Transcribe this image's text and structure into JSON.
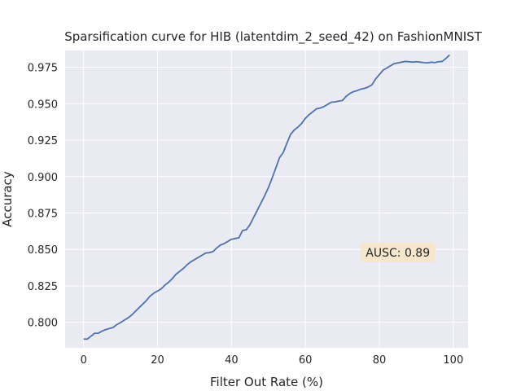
{
  "chart_data": {
    "type": "line",
    "title": "Sparsification curve for HIB (latentdim_2_seed_42) on FashionMNIST",
    "xlabel": "Filter Out Rate (%)",
    "ylabel": "Accuracy",
    "xlim": [
      -5,
      104
    ],
    "ylim": [
      0.7825,
      0.9865
    ],
    "xticks": [
      0,
      20,
      40,
      60,
      80,
      100
    ],
    "xtick_labels": [
      "0",
      "20",
      "40",
      "60",
      "80",
      "100"
    ],
    "yticks": [
      0.8,
      0.825,
      0.85,
      0.875,
      0.9,
      0.925,
      0.95,
      0.975
    ],
    "ytick_labels": [
      "0.800",
      "0.825",
      "0.850",
      "0.875",
      "0.900",
      "0.925",
      "0.950",
      "0.975"
    ],
    "grid": true,
    "colors": {
      "background": "#eaeaf2",
      "grid": "#ffffff",
      "line": "#4c72b0",
      "annotation_bg": "#f5e6cc"
    },
    "annotation": {
      "text": "AUSC: 0.89",
      "x": 85,
      "y": 0.848
    },
    "series": [
      {
        "x": [
          0,
          1,
          2,
          3,
          4,
          5,
          6,
          7,
          8,
          9,
          10,
          11,
          12,
          13,
          14,
          15,
          16,
          17,
          18,
          19,
          20,
          21,
          22,
          23,
          24,
          25,
          26,
          27,
          28,
          29,
          30,
          31,
          32,
          33,
          34,
          35,
          36,
          37,
          38,
          39,
          40,
          41,
          42,
          43,
          44,
          45,
          46,
          47,
          48,
          49,
          50,
          51,
          52,
          53,
          54,
          55,
          56,
          57,
          58,
          59,
          60,
          61,
          62,
          63,
          64,
          65,
          66,
          67,
          68,
          69,
          70,
          71,
          72,
          73,
          74,
          75,
          76,
          77,
          78,
          79,
          80,
          81,
          82,
          83,
          84,
          85,
          86,
          87,
          88,
          89,
          90,
          91,
          92,
          93,
          94,
          95,
          96,
          97,
          98,
          99
        ],
        "y": [
          0.7885,
          0.7885,
          0.7905,
          0.7925,
          0.7925,
          0.794,
          0.795,
          0.7958,
          0.7965,
          0.7985,
          0.7998,
          0.8015,
          0.803,
          0.805,
          0.8075,
          0.81,
          0.8125,
          0.815,
          0.818,
          0.82,
          0.8215,
          0.823,
          0.8255,
          0.8275,
          0.83,
          0.833,
          0.835,
          0.837,
          0.8395,
          0.8415,
          0.843,
          0.8445,
          0.846,
          0.8475,
          0.8478,
          0.8485,
          0.851,
          0.853,
          0.854,
          0.8555,
          0.857,
          0.8575,
          0.858,
          0.863,
          0.8635,
          0.867,
          0.872,
          0.877,
          0.882,
          0.887,
          0.8925,
          0.899,
          0.906,
          0.913,
          0.9165,
          0.923,
          0.929,
          0.932,
          0.934,
          0.9365,
          0.94,
          0.9425,
          0.9445,
          0.9465,
          0.947,
          0.948,
          0.9495,
          0.951,
          0.9512,
          0.9518,
          0.9522,
          0.955,
          0.957,
          0.9583,
          0.959,
          0.96,
          0.9605,
          0.9615,
          0.963,
          0.967,
          0.97,
          0.973,
          0.9745,
          0.976,
          0.9775,
          0.978,
          0.9785,
          0.979,
          0.9788,
          0.9785,
          0.9788,
          0.9785,
          0.9782,
          0.978,
          0.9785,
          0.9782,
          0.9788,
          0.979,
          0.981,
          0.9835
        ]
      }
    ]
  }
}
